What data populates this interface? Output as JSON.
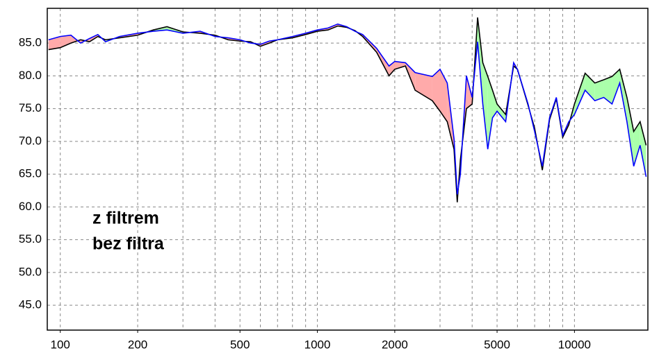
{
  "chart_data": {
    "type": "line",
    "x": [
      90,
      100,
      110,
      120,
      130,
      140,
      150,
      170,
      200,
      230,
      260,
      300,
      350,
      400,
      450,
      500,
      550,
      600,
      650,
      700,
      800,
      900,
      1000,
      1100,
      1200,
      1300,
      1400,
      1500,
      1700,
      1900,
      2000,
      2200,
      2400,
      2800,
      3000,
      3200,
      3400,
      3500,
      3600,
      3800,
      4000,
      4200,
      4400,
      4600,
      4800,
      5000,
      5400,
      5800,
      6000,
      6600,
      7000,
      7500,
      8000,
      8500,
      9000,
      9500,
      10000,
      11000,
      12000,
      13000,
      14000,
      15000,
      16000,
      17000,
      18000,
      19000
    ],
    "series": [
      {
        "name": "z filtrem",
        "color": "#0000ff",
        "values": [
          85.5,
          86.0,
          86.2,
          85.0,
          85.7,
          86.3,
          85.2,
          86.0,
          86.5,
          86.8,
          87.0,
          86.5,
          86.8,
          86.0,
          85.8,
          85.5,
          85.0,
          84.8,
          85.3,
          85.5,
          86.0,
          86.5,
          87.0,
          87.3,
          87.9,
          87.5,
          86.8,
          86.3,
          84.2,
          81.5,
          82.2,
          82.0,
          80.5,
          79.9,
          81.0,
          78.9,
          70.4,
          61.9,
          65.0,
          80.0,
          76.7,
          85.2,
          75.7,
          68.8,
          73.6,
          74.6,
          73.0,
          82.0,
          81.0,
          75.7,
          71.5,
          66.2,
          73.6,
          76.7,
          70.9,
          73.0,
          74.1,
          77.8,
          76.2,
          76.7,
          75.7,
          78.9,
          73.0,
          66.2,
          69.4,
          64.6
        ]
      },
      {
        "name": "bez filtra",
        "color": "#000000",
        "values": [
          84.0,
          84.3,
          85.0,
          85.5,
          85.2,
          86.0,
          85.5,
          85.8,
          86.2,
          87.0,
          87.5,
          86.7,
          86.5,
          86.2,
          85.5,
          85.3,
          85.2,
          84.5,
          85.0,
          85.5,
          85.8,
          86.3,
          86.8,
          87.0,
          87.6,
          87.4,
          86.9,
          86.0,
          83.6,
          80.0,
          81.0,
          81.5,
          77.8,
          76.2,
          74.6,
          73.0,
          68.8,
          60.7,
          67.2,
          75.0,
          75.7,
          88.9,
          82.0,
          79.9,
          77.8,
          75.7,
          74.1,
          81.5,
          81.0,
          75.5,
          72.0,
          65.6,
          73.3,
          76.5,
          70.6,
          72.5,
          75.7,
          80.4,
          78.9,
          79.4,
          79.9,
          81.0,
          76.7,
          71.5,
          73.0,
          69.4
        ]
      }
    ],
    "fill_colors": {
      "above": "#ffaaaa",
      "below": "#aaffaa"
    },
    "xscale": "log",
    "xlim": [
      89,
      19300
    ],
    "xticks": [
      100,
      200,
      500,
      1000,
      2000,
      5000,
      10000
    ],
    "xgrid": [
      100,
      200,
      300,
      400,
      500,
      600,
      700,
      800,
      900,
      1000,
      2000,
      3000,
      4000,
      5000,
      6000,
      7000,
      8000,
      9000,
      10000
    ],
    "ylim": [
      41.2,
      90.3
    ],
    "yticks": [
      {
        "value": 45,
        "label": "45.0"
      },
      {
        "value": 50,
        "label": "50.0"
      },
      {
        "value": 55,
        "label": "55.0"
      },
      {
        "value": 60,
        "label": "60.0"
      },
      {
        "value": 65,
        "label": "65.0"
      },
      {
        "value": 70,
        "label": "70.0"
      },
      {
        "value": 75,
        "label": "75.0"
      },
      {
        "value": 80,
        "label": "80.0"
      },
      {
        "value": 85,
        "label": "85.0"
      }
    ],
    "grid": true
  }
}
